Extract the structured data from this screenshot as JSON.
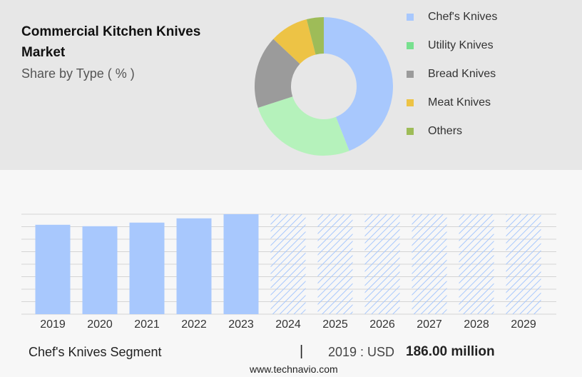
{
  "chart_data": [
    {
      "type": "donut",
      "title": "Commercial Kitchen Knives Market",
      "subtitle": "Share by Type ( % )",
      "categories": [
        "Chef's Knives",
        "Utility Knives",
        "Bread Knives",
        "Meat Knives",
        "Others"
      ],
      "values": [
        44,
        26,
        17,
        9,
        4
      ],
      "colors": [
        "#a8c8fd",
        "#b5f2bb",
        "#9b9b9b",
        "#edc345",
        "#9ebc58"
      ],
      "legend_colors": [
        "#a8c8fd",
        "#78e08f",
        "#9b9b9b",
        "#edc345",
        "#9ebc58"
      ]
    },
    {
      "type": "bar",
      "categories": [
        "2019",
        "2020",
        "2021",
        "2022",
        "2023",
        "2024",
        "2025",
        "2026",
        "2027",
        "2028",
        "2029"
      ],
      "values": [
        186,
        183,
        190.5,
        199.4,
        208,
        null,
        null,
        null,
        null,
        null,
        null
      ],
      "color": "#a8c8fd",
      "forecast_color": "#a8c8fd",
      "ylim": [
        0,
        208
      ],
      "segment": "Chef's Knives Segment",
      "year_label": "2019 : USD",
      "value_label": "186.00 million",
      "source": "www.technavio.com"
    }
  ]
}
